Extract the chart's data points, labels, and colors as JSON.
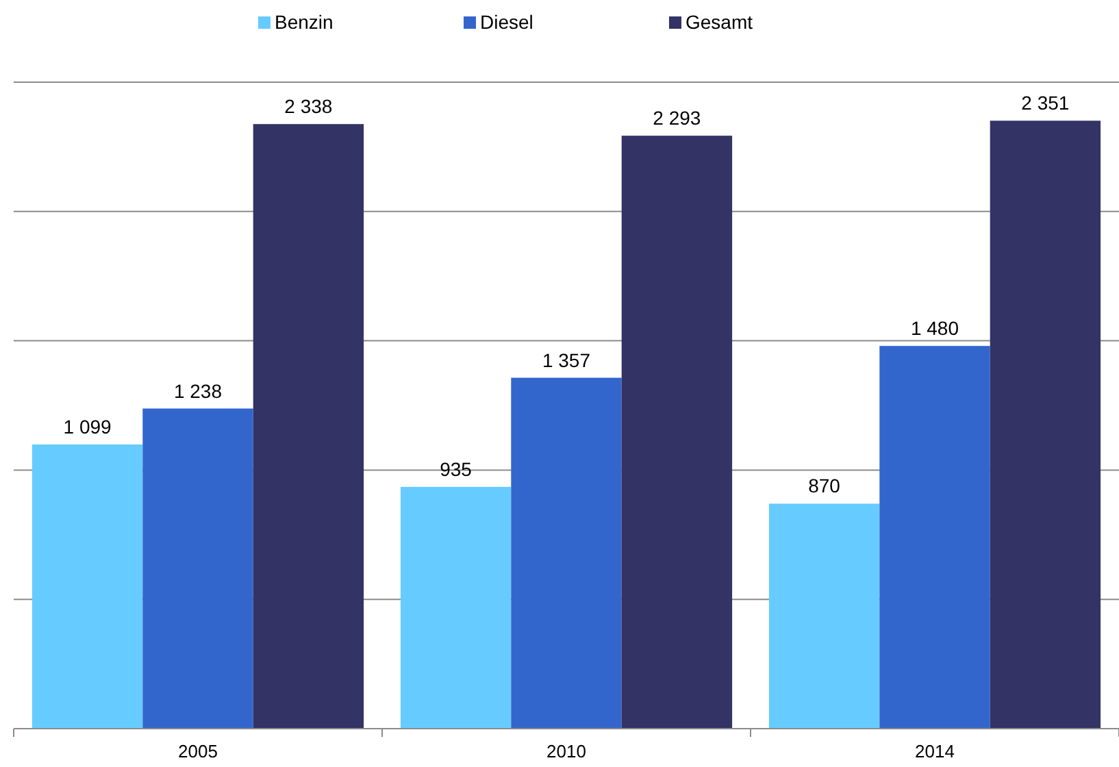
{
  "chart_data": {
    "type": "bar",
    "categories": [
      "2005",
      "2010",
      "2014"
    ],
    "series": [
      {
        "name": "Benzin",
        "color": "#66ccff",
        "values": [
          1099,
          935,
          870
        ],
        "value_labels": [
          "1 099",
          "935",
          "870"
        ]
      },
      {
        "name": "Diesel",
        "color": "#3366cc",
        "values": [
          1238,
          1357,
          1480
        ],
        "value_labels": [
          "1 238",
          "1 357",
          "1 480"
        ]
      },
      {
        "name": "Gesamt",
        "color": "#333366",
        "values": [
          2338,
          2293,
          2351
        ],
        "value_labels": [
          "2 338",
          "2 293",
          "2 351"
        ]
      }
    ],
    "ylim": [
      0,
      2500
    ],
    "yticks": [
      {
        "value": 0,
        "label": null
      },
      {
        "value": 500,
        "label": null
      },
      {
        "value": 1000,
        "label": null
      },
      {
        "value": 1500,
        "label": null
      },
      {
        "value": 2000,
        "label": null
      },
      {
        "value": 2500,
        "label": null
      }
    ],
    "tick_labels": "x",
    "grid": "y",
    "legend": "top"
  }
}
